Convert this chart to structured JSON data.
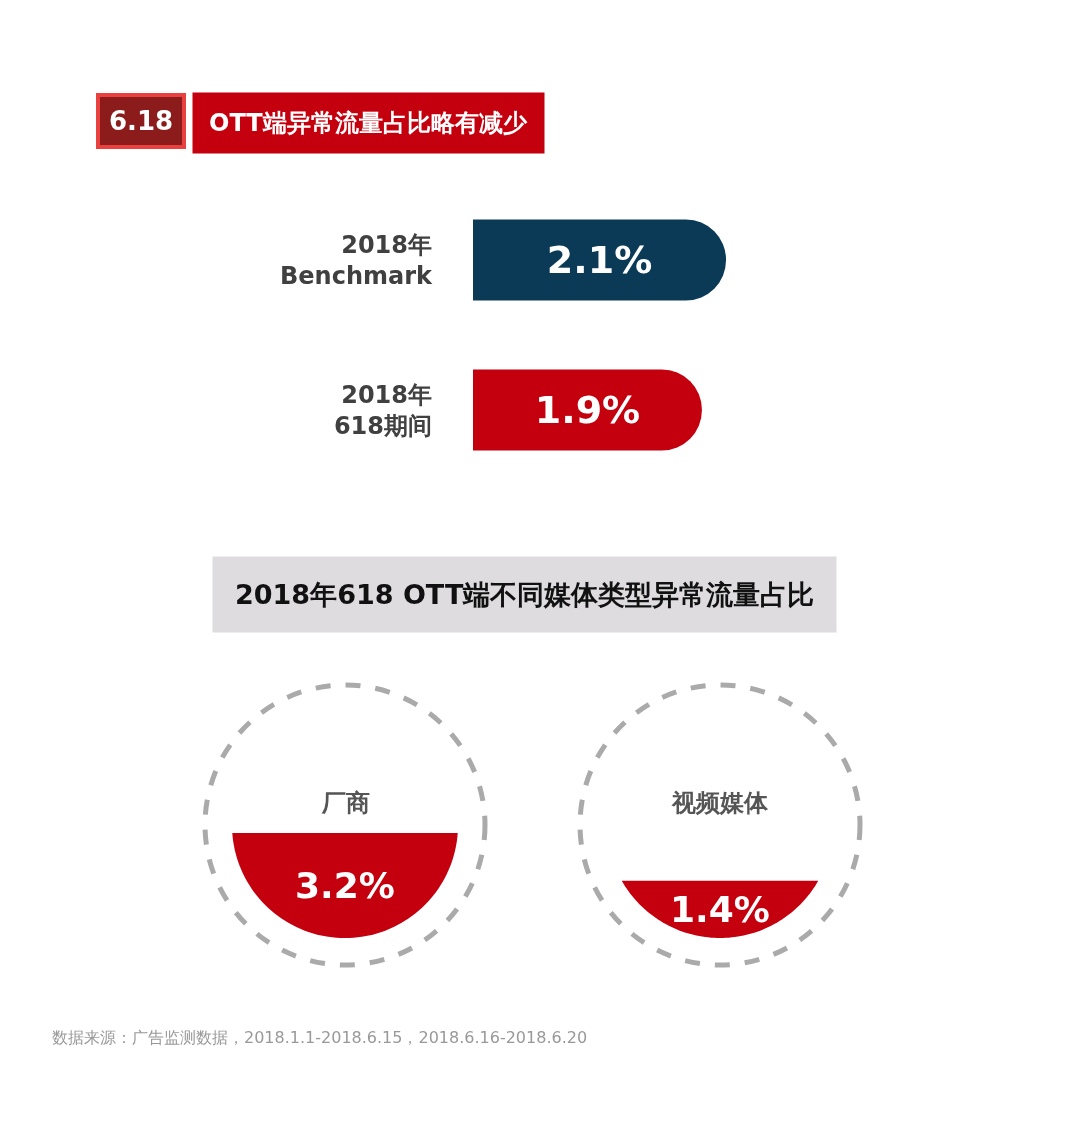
{
  "chart_data": [
    {
      "type": "bar",
      "orientation": "horizontal",
      "title": "OTT端异常流量占比略有减少",
      "categories": [
        "2018年\nBenchmark",
        "2018年\n618期间"
      ],
      "values": [
        2.1,
        1.9
      ],
      "colors": [
        "#0b3a57",
        "#c4000f"
      ],
      "value_labels": [
        "2.1%",
        "1.9%"
      ],
      "tick_labels": "y",
      "annotations": [
        "6.18"
      ]
    },
    {
      "type": "other",
      "title": "2018年618 OTT端不同媒体类型异常流量占比",
      "categories": [
        "厂商",
        "视频媒体"
      ],
      "values": [
        3.2,
        1.4
      ],
      "colors": [
        "#c4000f",
        "#c4000f"
      ],
      "value_labels": [
        "3.2%",
        "1.4%"
      ],
      "annotations": [
        "数据来源：广告监测数据，2018.1.1-2018.6.15，2018.6.16-2018.6.20"
      ]
    }
  ]
}
